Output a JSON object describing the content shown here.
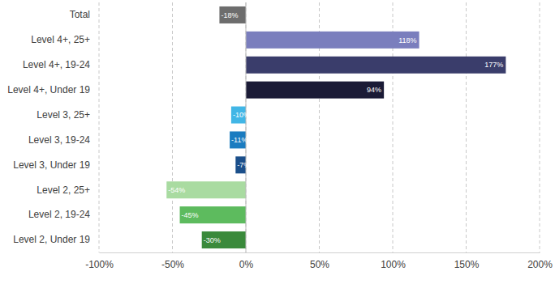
{
  "chart_data": {
    "type": "bar",
    "orientation": "horizontal",
    "categories": [
      "Total",
      "Level 4+, 25+",
      "Level 4+, 19-24",
      "Level 4+, Under 19",
      "Level 3, 25+",
      "Level 3, 19-24",
      "Level 3, Under 19",
      "Level 2, 25+",
      "Level 2, 19-24",
      "Level 2, Under 19"
    ],
    "values": [
      -18,
      118,
      177,
      94,
      -10,
      -11,
      -7,
      -54,
      -45,
      -30
    ],
    "value_labels": [
      "-18%",
      "118%",
      "177%",
      "94%",
      "-10%",
      "-11%",
      "-7%",
      "-54%",
      "-45%",
      "-30%"
    ],
    "colors": [
      "#6d6d6d",
      "#7a7ebd",
      "#3a3d6b",
      "#1b1b36",
      "#41b6e6",
      "#1b7cc0",
      "#1b4f8a",
      "#a9dba1",
      "#5dbb5e",
      "#3a8a3b"
    ],
    "xlim": [
      -100,
      200
    ],
    "xticks": [
      {
        "value": -100,
        "label": "-100%"
      },
      {
        "value": -50,
        "label": "-50%"
      },
      {
        "value": 0,
        "label": "0%"
      },
      {
        "value": 50,
        "label": "50%"
      },
      {
        "value": 100,
        "label": "100%"
      },
      {
        "value": 150,
        "label": "150%"
      },
      {
        "value": 200,
        "label": "200%"
      }
    ],
    "grid": true,
    "data_labels": true
  }
}
